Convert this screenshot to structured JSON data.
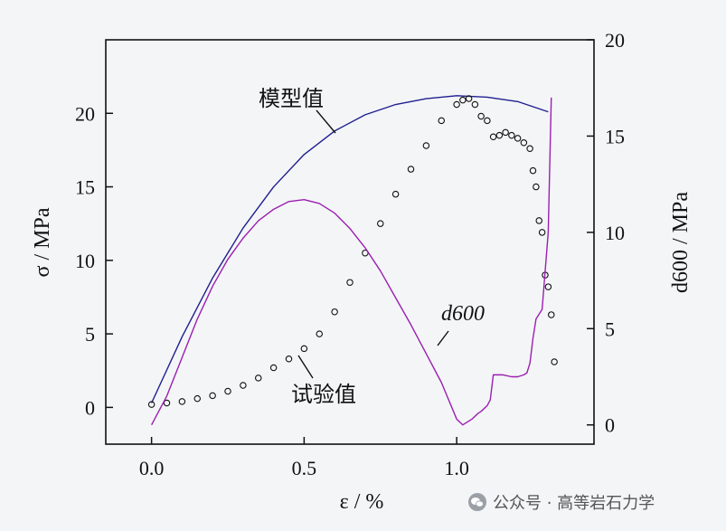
{
  "chart_data": {
    "type": "line",
    "xlabel": "ε / %",
    "ylabel_left": "σ / MPa",
    "ylabel_right": "d600 / MPa",
    "xlim": [
      -0.15,
      1.45
    ],
    "ylim_left": [
      -2.5,
      25
    ],
    "ylim_right": [
      -1,
      20
    ],
    "x_ticks": [
      "0.0",
      "0.5",
      "1.0"
    ],
    "y_ticks_left": [
      "0",
      "5",
      "10",
      "15",
      "20"
    ],
    "y_ticks_right": [
      "0",
      "5",
      "10",
      "15",
      "20"
    ],
    "grid": false,
    "series": [
      {
        "name": "模型值",
        "axis": "left",
        "style": "line",
        "color": "#1f1f8f",
        "x": [
          0.0,
          0.1,
          0.2,
          0.3,
          0.4,
          0.5,
          0.6,
          0.7,
          0.8,
          0.9,
          1.0,
          1.1,
          1.2,
          1.3
        ],
        "y": [
          0.3,
          4.8,
          8.8,
          12.2,
          15.0,
          17.2,
          18.8,
          19.9,
          20.6,
          21.0,
          21.2,
          21.1,
          20.8,
          20.1
        ]
      },
      {
        "name": "试验值",
        "axis": "left",
        "style": "markers",
        "color": "#111111",
        "x": [
          0.0,
          0.05,
          0.1,
          0.15,
          0.2,
          0.25,
          0.3,
          0.35,
          0.4,
          0.45,
          0.5,
          0.55,
          0.6,
          0.65,
          0.7,
          0.75,
          0.8,
          0.85,
          0.9,
          0.95,
          1.0,
          1.02,
          1.04,
          1.06,
          1.08,
          1.1,
          1.12,
          1.14,
          1.16,
          1.18,
          1.2,
          1.22,
          1.24,
          1.25,
          1.26,
          1.27,
          1.28,
          1.29,
          1.3,
          1.31,
          1.32
        ],
        "y": [
          0.2,
          0.3,
          0.4,
          0.6,
          0.8,
          1.1,
          1.5,
          2.0,
          2.7,
          3.3,
          4.0,
          5.0,
          6.5,
          8.5,
          10.5,
          12.5,
          14.5,
          16.2,
          17.8,
          19.5,
          20.6,
          20.9,
          21.0,
          20.6,
          19.8,
          19.5,
          18.4,
          18.5,
          18.7,
          18.5,
          18.3,
          18.0,
          17.6,
          16.1,
          15.0,
          12.7,
          11.9,
          9.0,
          8.2,
          6.3,
          3.1
        ]
      },
      {
        "name": "d600",
        "axis": "right",
        "style": "line",
        "color": "#9a1fb0",
        "x": [
          0.0,
          0.05,
          0.1,
          0.15,
          0.2,
          0.25,
          0.3,
          0.35,
          0.4,
          0.45,
          0.5,
          0.55,
          0.6,
          0.65,
          0.7,
          0.75,
          0.8,
          0.85,
          0.9,
          0.95,
          1.0,
          1.02,
          1.05,
          1.07,
          1.08,
          1.1,
          1.11,
          1.12,
          1.15,
          1.18,
          1.2,
          1.22,
          1.23,
          1.24,
          1.25,
          1.26,
          1.28,
          1.3,
          1.31
        ],
        "y": [
          0.0,
          1.5,
          3.5,
          5.5,
          7.2,
          8.6,
          9.7,
          10.6,
          11.2,
          11.6,
          11.7,
          11.5,
          11.0,
          10.2,
          9.2,
          8.0,
          6.6,
          5.2,
          3.7,
          2.2,
          0.3,
          0.0,
          0.3,
          0.6,
          0.7,
          1.0,
          1.3,
          2.6,
          2.6,
          2.5,
          2.5,
          2.6,
          2.7,
          3.2,
          4.5,
          5.5,
          6.0,
          10.0,
          17.0
        ]
      }
    ],
    "annotations": [
      {
        "label": "模型值"
      },
      {
        "label": "试验值"
      },
      {
        "label": "d600"
      }
    ]
  },
  "watermark": {
    "text": "公众号 · 高等岩石力学"
  }
}
